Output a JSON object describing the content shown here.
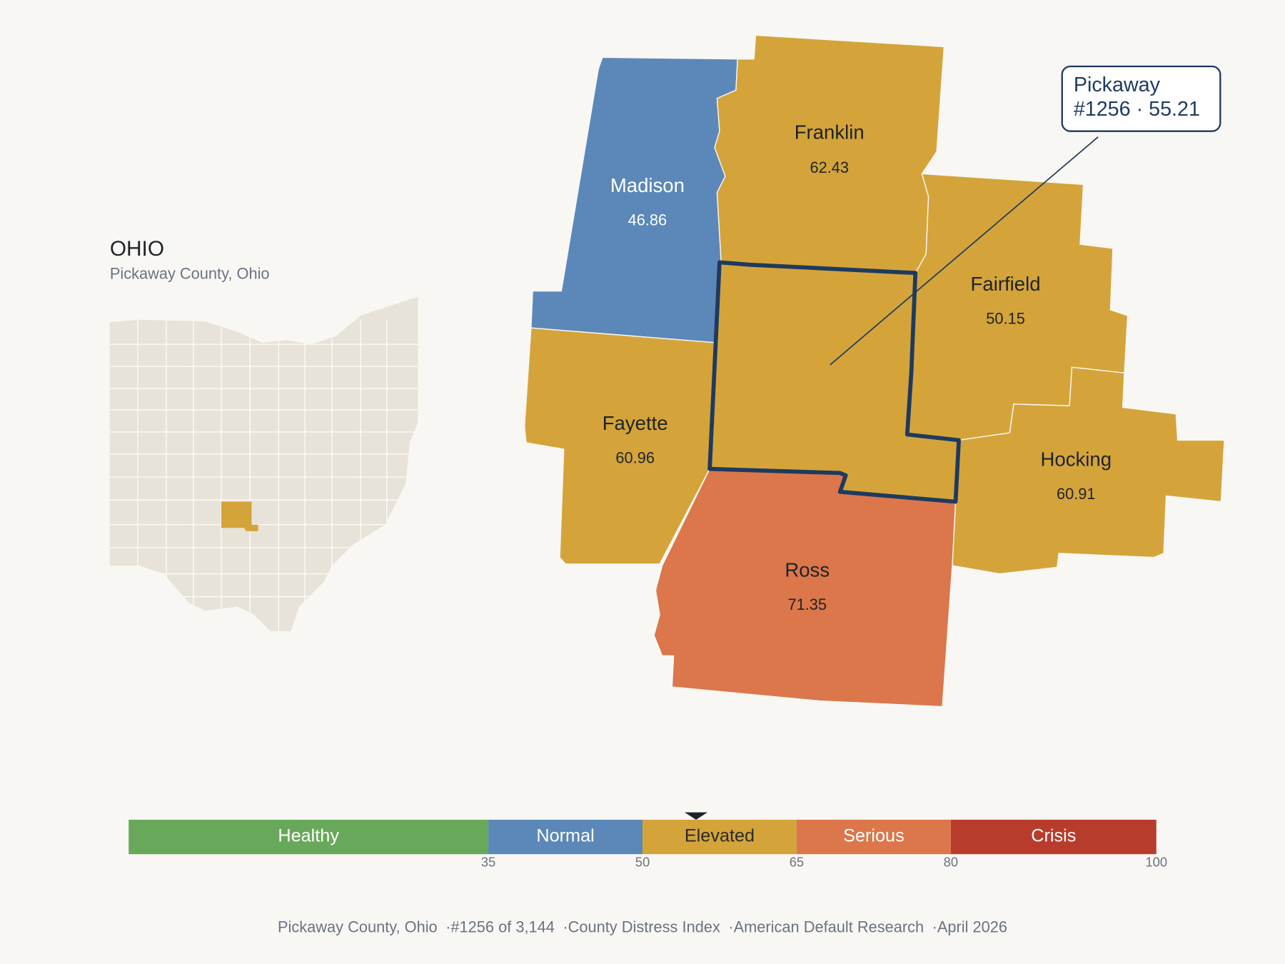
{
  "header": {
    "title": "OHIO",
    "subtitle": "Pickaway County, Ohio"
  },
  "counties": [
    {
      "name": "Madison",
      "value": 46.86
    },
    {
      "name": "Franklin",
      "value": 62.43
    },
    {
      "name": "Fairfield",
      "value": 50.15
    },
    {
      "name": "Fayette",
      "value": 60.96
    },
    {
      "name": "Hocking",
      "value": 60.91
    },
    {
      "name": "Ross",
      "value": 71.35
    },
    {
      "name": "Pickaway",
      "value": 55.21
    }
  ],
  "callout": {
    "county": "Pickaway",
    "rank": "#1256",
    "separator": "·",
    "value": 55.21
  },
  "scale": {
    "lim": [
      0,
      100
    ],
    "ticks": [
      35,
      50,
      65,
      80,
      100
    ],
    "bands": [
      {
        "label": "Healthy",
        "color": "#68a85a",
        "text_color": "#ffffff"
      },
      {
        "label": "Normal",
        "color": "#5b88b8",
        "text_color": "#ffffff"
      },
      {
        "label": "Elevated",
        "color": "#d4a43a",
        "text_color": "#2a2a2a"
      },
      {
        "label": "Serious",
        "color": "#db774a",
        "text_color": "#ffffff"
      },
      {
        "label": "Crisis",
        "color": "#b83c2c",
        "text_color": "#ffffff"
      }
    ]
  },
  "footer": {
    "items": [
      "Pickaway County, Ohio",
      "#1256 of 3,144",
      "County Distress Index",
      "American Default Research",
      "April 2026"
    ],
    "separator": "·"
  }
}
